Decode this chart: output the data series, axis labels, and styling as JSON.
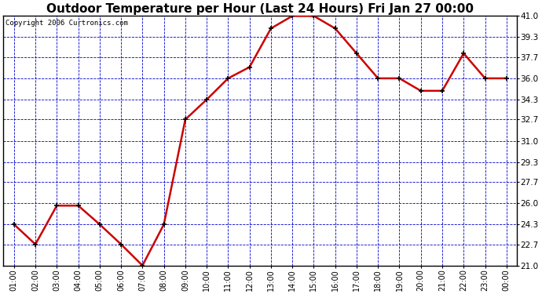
{
  "title": "Outdoor Temperature per Hour (Last 24 Hours) Fri Jan 27 00:00",
  "copyright": "Copyright 2006 Curtronics.com",
  "hours": [
    "01:00",
    "02:00",
    "03:00",
    "04:00",
    "05:00",
    "06:00",
    "07:00",
    "08:00",
    "09:00",
    "10:00",
    "11:00",
    "12:00",
    "13:00",
    "14:00",
    "15:00",
    "16:00",
    "17:00",
    "18:00",
    "19:00",
    "20:00",
    "21:00",
    "22:00",
    "23:00",
    "00:00"
  ],
  "temps": [
    24.3,
    22.7,
    25.8,
    25.8,
    24.3,
    22.7,
    21.0,
    24.3,
    32.7,
    34.3,
    36.0,
    36.9,
    40.0,
    41.0,
    41.0,
    40.0,
    38.0,
    36.0,
    36.0,
    35.0,
    35.0,
    38.0,
    36.0,
    36.0
  ],
  "ylim": [
    21.0,
    41.0
  ],
  "yticks": [
    21.0,
    22.7,
    24.3,
    26.0,
    27.7,
    29.3,
    31.0,
    32.7,
    34.3,
    36.0,
    37.7,
    39.3,
    41.0
  ],
  "line_color": "#cc0000",
  "marker_color": "#000000",
  "grid_color": "#0000cc",
  "bg_color": "#ffffff",
  "plot_bg_color": "#ffffff",
  "title_fontsize": 11,
  "copyright_fontsize": 6.5,
  "tick_fontsize": 7,
  "ytick_fontsize": 7.5
}
